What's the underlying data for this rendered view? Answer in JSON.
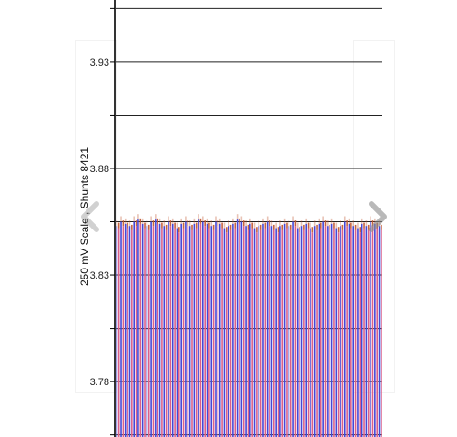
{
  "chart_data": {
    "type": "bar",
    "ylabel": "250 mV Scale , Shunts 8421",
    "yticks": [
      "3.93",
      "3.88",
      "3.83",
      "3.78"
    ],
    "ylim": [
      3.754,
      3.959
    ],
    "grid": true,
    "colors": {
      "series_a": "#4646d6",
      "series_b": "#d9608a",
      "cap": "#c0522a"
    },
    "series": [
      {
        "values": [
          3.853,
          3.855,
          3.854,
          3.853,
          3.855,
          3.856,
          3.854,
          3.853,
          3.855,
          3.856,
          3.854,
          3.853,
          3.855,
          3.854,
          3.852,
          3.854,
          3.855,
          3.853,
          3.854,
          3.856,
          3.855,
          3.854,
          3.853,
          3.855,
          3.854,
          3.852,
          3.853,
          3.854,
          3.856,
          3.855,
          3.853,
          3.854,
          3.852,
          3.853,
          3.854,
          3.855,
          3.853,
          3.852,
          3.853,
          3.854,
          3.853,
          3.855,
          3.852,
          3.853,
          3.854,
          3.852,
          3.853,
          3.854,
          3.855,
          3.853,
          3.854,
          3.852,
          3.853,
          3.855,
          3.854,
          3.853,
          3.852,
          3.854,
          3.853,
          3.855,
          3.854,
          3.853
        ]
      },
      {
        "values": [
          3.852,
          3.853,
          3.852,
          3.851,
          3.853,
          3.854,
          3.852,
          3.851,
          3.853,
          3.854,
          3.852,
          3.851,
          3.853,
          3.852,
          3.85,
          3.852,
          3.853,
          3.851,
          3.852,
          3.854,
          3.853,
          3.852,
          3.851,
          3.853,
          3.852,
          3.85,
          3.851,
          3.852,
          3.854,
          3.853,
          3.851,
          3.852,
          3.85,
          3.851,
          3.852,
          3.853,
          3.851,
          3.85,
          3.851,
          3.852,
          3.851,
          3.853,
          3.85,
          3.851,
          3.852,
          3.85,
          3.851,
          3.852,
          3.853,
          3.851,
          3.852,
          3.85,
          3.851,
          3.853,
          3.852,
          3.851,
          3.85,
          3.852,
          3.851,
          3.853,
          3.852,
          3.851
        ]
      }
    ]
  },
  "nav": {
    "prev_icon": "chevron-left-icon",
    "next_icon": "chevron-right-icon"
  }
}
